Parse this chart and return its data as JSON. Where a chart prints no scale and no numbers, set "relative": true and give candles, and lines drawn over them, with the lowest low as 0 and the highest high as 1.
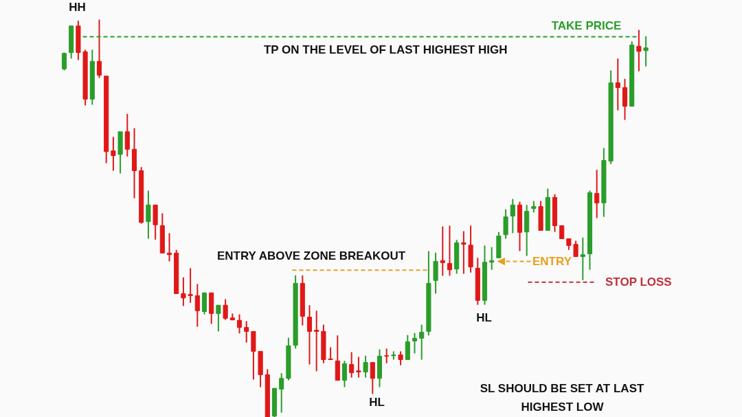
{
  "chart_data": {
    "type": "candlestick",
    "relative": true,
    "categories": [
      null,
      null,
      null,
      null,
      null,
      null,
      null,
      null,
      null,
      null,
      null,
      null,
      null,
      null,
      null,
      null,
      null,
      null,
      null,
      null,
      null,
      null,
      null,
      null,
      null,
      null,
      null,
      null,
      null,
      null,
      null,
      null,
      null,
      null,
      null,
      null,
      null,
      null,
      null,
      null,
      null,
      null,
      null,
      null,
      null,
      null,
      null,
      null,
      null,
      null,
      null,
      null,
      null,
      null,
      null,
      null,
      null,
      null,
      null,
      null,
      null,
      null,
      null,
      null,
      null,
      null,
      null,
      null,
      null,
      null,
      null,
      null,
      null,
      null,
      null,
      null,
      null,
      null,
      null,
      null,
      null,
      null,
      null,
      null
    ],
    "ohlc": [
      [
        0.876,
        0.917,
        0.872,
        0.915
      ],
      [
        0.917,
        0.984,
        0.902,
        0.984
      ],
      [
        0.984,
        0.997,
        0.898,
        0.917
      ],
      [
        0.919,
        0.924,
        0.784,
        0.8
      ],
      [
        0.8,
        0.924,
        0.786,
        0.895
      ],
      [
        0.895,
        1.0,
        0.853,
        0.86
      ],
      [
        0.858,
        0.858,
        0.639,
        0.668
      ],
      [
        0.67,
        0.705,
        0.62,
        0.658
      ],
      [
        0.661,
        0.718,
        0.613,
        0.718
      ],
      [
        0.718,
        0.763,
        0.656,
        0.674
      ],
      [
        0.674,
        0.727,
        0.551,
        0.62
      ],
      [
        0.62,
        0.629,
        0.487,
        0.49
      ],
      [
        0.492,
        0.57,
        0.449,
        0.534
      ],
      [
        0.534,
        0.534,
        0.447,
        0.484
      ],
      [
        0.482,
        0.513,
        0.413,
        0.413
      ],
      [
        0.413,
        0.463,
        0.392,
        0.409
      ],
      [
        0.413,
        0.421,
        0.311,
        0.311
      ],
      [
        0.311,
        0.352,
        0.28,
        0.3
      ],
      [
        0.309,
        0.375,
        0.288,
        0.306
      ],
      [
        0.306,
        0.335,
        0.228,
        0.268
      ],
      [
        0.266,
        0.313,
        0.259,
        0.313
      ],
      [
        0.313,
        0.313,
        0.235,
        0.261
      ],
      [
        0.261,
        0.282,
        0.216,
        0.282
      ],
      [
        0.282,
        0.297,
        0.245,
        0.249
      ],
      [
        0.25,
        0.261,
        0.244,
        0.245
      ],
      [
        0.244,
        0.259,
        0.211,
        0.226
      ],
      [
        0.226,
        0.242,
        0.188,
        0.216
      ],
      [
        0.216,
        0.216,
        0.095,
        0.166
      ],
      [
        0.166,
        0.166,
        0.076,
        0.107
      ],
      [
        0.107,
        0.121,
        0.0,
        0.0
      ],
      [
        0.003,
        0.073,
        0.0,
        0.073
      ],
      [
        0.071,
        0.111,
        0.012,
        0.098
      ],
      [
        0.098,
        0.2,
        0.093,
        0.18
      ],
      [
        0.181,
        0.357,
        0.173,
        0.337
      ],
      [
        0.337,
        0.357,
        0.231,
        0.254
      ],
      [
        0.252,
        0.282,
        0.133,
        0.216
      ],
      [
        0.219,
        0.268,
        0.116,
        0.216
      ],
      [
        0.216,
        0.233,
        0.136,
        0.145
      ],
      [
        0.147,
        0.176,
        0.145,
        0.145
      ],
      [
        0.142,
        0.206,
        0.093,
        0.093
      ],
      [
        0.093,
        0.142,
        0.076,
        0.135
      ],
      [
        0.133,
        0.164,
        0.1,
        0.112
      ],
      [
        0.117,
        0.152,
        0.1,
        0.114
      ],
      [
        0.114,
        0.155,
        0.1,
        0.138
      ],
      [
        0.138,
        0.138,
        0.059,
        0.098
      ],
      [
        0.098,
        0.171,
        0.076,
        0.154
      ],
      [
        0.155,
        0.173,
        0.136,
        0.154
      ],
      [
        0.155,
        0.166,
        0.145,
        0.157
      ],
      [
        0.157,
        0.166,
        0.131,
        0.145
      ],
      [
        0.145,
        0.207,
        0.145,
        0.19
      ],
      [
        0.192,
        0.212,
        0.161,
        0.199
      ],
      [
        0.199,
        0.233,
        0.145,
        0.214
      ],
      [
        0.216,
        0.418,
        0.206,
        0.337
      ],
      [
        0.344,
        0.414,
        0.311,
        0.392
      ],
      [
        0.394,
        0.48,
        0.356,
        0.389
      ],
      [
        0.387,
        0.482,
        0.356,
        0.371
      ],
      [
        0.373,
        0.446,
        0.361,
        0.439
      ],
      [
        0.439,
        0.468,
        0.361,
        0.435
      ],
      [
        0.433,
        0.482,
        0.364,
        0.378
      ],
      [
        0.375,
        0.401,
        0.283,
        0.294
      ],
      [
        0.294,
        0.432,
        0.283,
        0.39
      ],
      [
        0.39,
        0.428,
        0.371,
        0.394
      ],
      [
        0.401,
        0.466,
        0.401,
        0.456
      ],
      [
        0.459,
        0.523,
        0.449,
        0.504
      ],
      [
        0.506,
        0.549,
        0.463,
        0.534
      ],
      [
        0.534,
        0.542,
        0.418,
        0.465
      ],
      [
        0.466,
        0.534,
        0.406,
        0.518
      ],
      [
        0.525,
        0.544,
        0.515,
        0.53
      ],
      [
        0.53,
        0.544,
        0.47,
        0.47
      ],
      [
        0.47,
        0.575,
        0.47,
        0.553
      ],
      [
        0.553,
        0.561,
        0.466,
        0.482
      ],
      [
        0.482,
        0.482,
        0.449,
        0.449
      ],
      [
        0.449,
        0.449,
        0.421,
        0.432
      ],
      [
        0.435,
        0.444,
        0.404,
        0.404
      ],
      [
        0.404,
        0.452,
        0.345,
        0.409
      ],
      [
        0.411,
        0.57,
        0.371,
        0.565
      ],
      [
        0.563,
        0.622,
        0.501,
        0.539
      ],
      [
        0.539,
        0.677,
        0.504,
        0.646
      ],
      [
        0.644,
        0.872,
        0.637,
        0.841
      ],
      [
        0.841,
        0.902,
        0.772,
        0.829
      ],
      [
        0.829,
        0.851,
        0.748,
        0.782
      ],
      [
        0.782,
        0.945,
        0.782,
        0.936
      ],
      [
        0.933,
        0.974,
        0.87,
        0.92
      ],
      [
        0.922,
        0.958,
        0.882,
        0.929
      ]
    ],
    "colors": [
      "#2a9d2a",
      "#2a9d2a",
      "#e01818",
      "#e01818",
      "#2a9d2a",
      "#e01818",
      "#e01818",
      "#e01818",
      "#2a9d2a",
      "#e01818",
      "#e01818",
      "#e01818",
      "#2a9d2a",
      "#e01818",
      "#e01818",
      "#e01818",
      "#e01818",
      "#e01818",
      "#e01818",
      "#e01818",
      "#2a9d2a",
      "#e01818",
      "#2a9d2a",
      "#e01818",
      "#e01818",
      "#e01818",
      "#e01818",
      "#e01818",
      "#e01818",
      "#e01818",
      "#2a9d2a",
      "#2a9d2a",
      "#2a9d2a",
      "#2a9d2a",
      "#e01818",
      "#e01818",
      "#e01818",
      "#e01818",
      "#e01818",
      "#e01818",
      "#2a9d2a",
      "#e01818",
      "#e01818",
      "#2a9d2a",
      "#e01818",
      "#2a9d2a",
      "#e01818",
      "#2a9d2a",
      "#e01818",
      "#2a9d2a",
      "#2a9d2a",
      "#2a9d2a",
      "#2a9d2a",
      "#2a9d2a",
      "#e01818",
      "#e01818",
      "#2a9d2a",
      "#e01818",
      "#e01818",
      "#e01818",
      "#2a9d2a",
      "#2a9d2a",
      "#2a9d2a",
      "#2a9d2a",
      "#2a9d2a",
      "#e01818",
      "#2a9d2a",
      "#2a9d2a",
      "#e01818",
      "#2a9d2a",
      "#e01818",
      "#e01818",
      "#e01818",
      "#e01818",
      "#2a9d2a",
      "#2a9d2a",
      "#e01818",
      "#2a9d2a",
      "#2a9d2a",
      "#e01818",
      "#e01818",
      "#2a9d2a",
      "#e01818",
      "#2a9d2a"
    ],
    "ref_lines": [
      {
        "axis": "y",
        "value": 0.957,
        "label": "TAKE PRICE",
        "color": "#2a9d2a",
        "line_style": "dashed"
      },
      {
        "axis": "y",
        "value": 0.37,
        "color": "#e8a020",
        "line_style": "dashed"
      },
      {
        "axis": "y",
        "value": 0.34,
        "label": "STOP LOSS",
        "color": "#c0303a",
        "line_style": "dashed"
      }
    ],
    "annotations": [
      "HH",
      "TP ON THE LEVEL OF LAST HIGHEST HIGH",
      "ENTRY ABOVE ZONE BREAKOUT",
      "HL",
      "ENTRY",
      "HL",
      "SL SHOULD BE SET AT LAST HIGHEST LOW"
    ]
  }
}
